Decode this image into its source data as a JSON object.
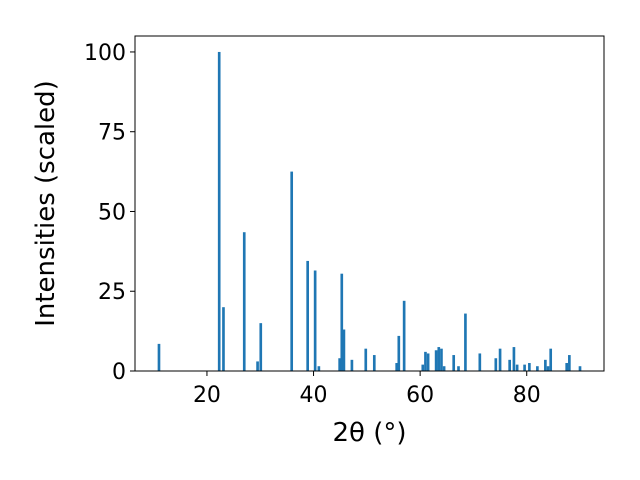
{
  "chart_data": {
    "type": "bar",
    "title": "",
    "xlabel": "2θ (°)",
    "ylabel": "Intensities (scaled)",
    "xlim": [
      6.5,
      94.5
    ],
    "ylim": [
      0,
      105
    ],
    "xticks": [
      20,
      40,
      60,
      80
    ],
    "yticks": [
      0,
      25,
      50,
      75,
      100
    ],
    "bar_width": 0.5,
    "grid": false,
    "legend": "none",
    "color": "#1f77b4",
    "x": [
      11.0,
      22.3,
      23.1,
      27.0,
      29.5,
      30.1,
      35.9,
      38.9,
      40.3,
      41.0,
      44.9,
      45.3,
      45.7,
      47.2,
      49.8,
      51.4,
      55.6,
      56.0,
      57.0,
      60.5,
      61.0,
      61.5,
      63.0,
      63.5,
      64.0,
      64.5,
      66.3,
      67.2,
      68.5,
      71.2,
      74.2,
      75.0,
      76.8,
      77.6,
      78.2,
      79.6,
      80.5,
      82.0,
      83.5,
      84.0,
      84.5,
      87.5,
      88.0,
      90.0
    ],
    "y": [
      8.5,
      100,
      20,
      43.5,
      3,
      15,
      62.5,
      34.5,
      31.5,
      1.5,
      4,
      30.5,
      13,
      3.5,
      7,
      5,
      2.5,
      11,
      22,
      2,
      6,
      5.5,
      6.5,
      7.5,
      7,
      1.5,
      5,
      1.5,
      18,
      5.5,
      4,
      7,
      3.5,
      7.5,
      2,
      2,
      2.5,
      1.5,
      3.5,
      1.5,
      7,
      2.5,
      5,
      1.5
    ]
  }
}
